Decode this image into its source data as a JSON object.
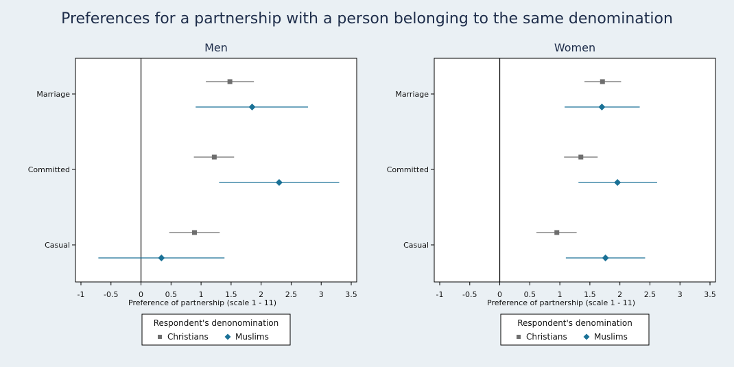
{
  "title": "Preferences for a partnership with a person belonging to the same denomination",
  "colors": {
    "christians": "#6e6e6e",
    "muslims": "#1a7196",
    "background": "#eaf0f4",
    "plot_bg": "#ffffff"
  },
  "chart_data": [
    {
      "type": "scatter",
      "subtitle": "Men",
      "xlabel": "Preference of partnership (scale 1 - 11)",
      "xlim": [
        -1,
        3.5
      ],
      "xticks": [
        "-1",
        "-0.5",
        "0",
        "0.5",
        "1",
        "1.5",
        "2",
        "2.5",
        "3",
        "3.5"
      ],
      "categories": [
        "Marriage",
        "Committed",
        "Casual"
      ],
      "series": [
        {
          "name": "Christians",
          "marker": "square",
          "values": [
            1.48,
            1.22,
            0.89
          ],
          "ci_low": [
            1.08,
            0.88,
            0.47
          ],
          "ci_high": [
            1.88,
            1.55,
            1.31
          ]
        },
        {
          "name": "Muslims",
          "marker": "diamond",
          "values": [
            1.85,
            2.3,
            0.34
          ],
          "ci_low": [
            0.91,
            1.3,
            -0.71
          ],
          "ci_high": [
            2.78,
            3.3,
            1.39
          ]
        }
      ],
      "reference_line": 0,
      "legend": {
        "title": "Respondent's denonomination",
        "entries": [
          "Christians",
          "Muslims"
        ],
        "placement": "bottom"
      }
    },
    {
      "type": "scatter",
      "subtitle": "Women",
      "xlabel": "Preference of partnership (scale 1 - 11)",
      "xlim": [
        -1,
        3.5
      ],
      "xticks": [
        "-1",
        "-0.5",
        "0",
        "0.5",
        "1",
        "1.5",
        "2",
        "2.5",
        "3",
        "3.5"
      ],
      "categories": [
        "Marriage",
        "Committed",
        "Casual"
      ],
      "series": [
        {
          "name": "Christians",
          "marker": "square",
          "values": [
            1.71,
            1.35,
            0.95
          ],
          "ci_low": [
            1.41,
            1.07,
            0.61
          ],
          "ci_high": [
            2.02,
            1.63,
            1.28
          ]
        },
        {
          "name": "Muslims",
          "marker": "diamond",
          "values": [
            1.7,
            1.96,
            1.76
          ],
          "ci_low": [
            1.08,
            1.31,
            1.1
          ],
          "ci_high": [
            2.33,
            2.62,
            2.42
          ]
        }
      ],
      "reference_line": 0,
      "legend": {
        "title": "Respondent's denomination",
        "entries": [
          "Christians",
          "Muslims"
        ],
        "placement": "bottom"
      }
    }
  ]
}
